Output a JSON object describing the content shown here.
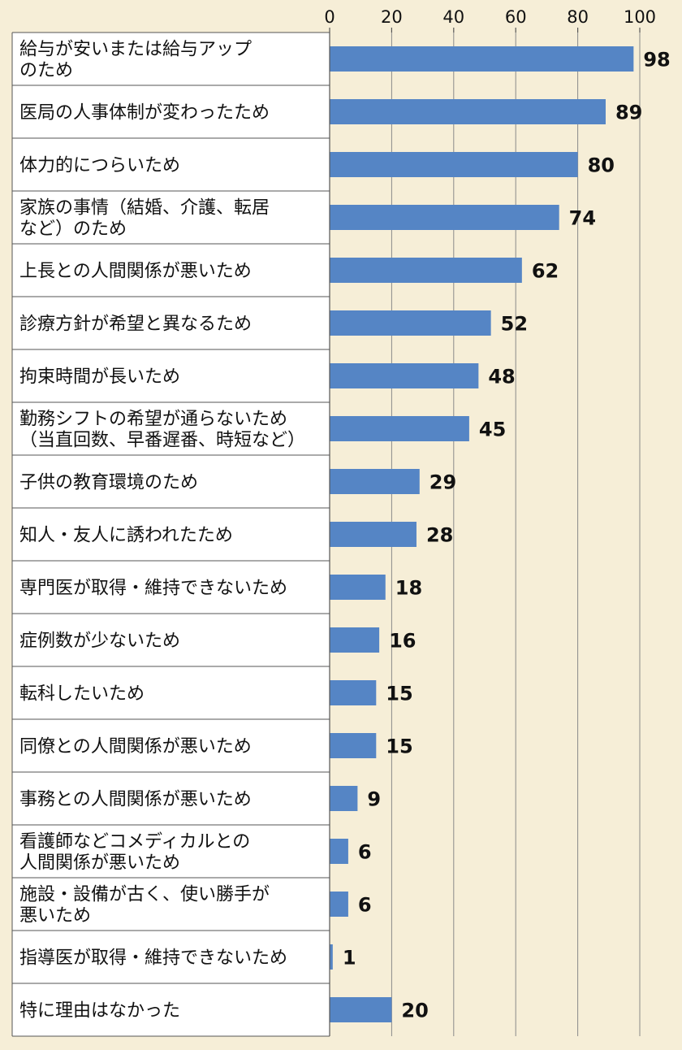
{
  "colors": {
    "background": "#f6eed7",
    "bar": "#5585c5",
    "label_panel": "#ffffff",
    "line": "#555555"
  },
  "chart_data": {
    "type": "bar",
    "orientation": "horizontal",
    "xlim": [
      0,
      100
    ],
    "ticks": [
      0,
      20,
      40,
      60,
      80,
      100
    ],
    "grid": true,
    "categories": [
      [
        "給与が安いまたは給与アップ",
        "のため"
      ],
      [
        "医局の人事体制が変わったため"
      ],
      [
        "体力的につらいため"
      ],
      [
        "家族の事情（結婚、介護、転居",
        "など）のため"
      ],
      [
        "上長との人間関係が悪いため"
      ],
      [
        "診療方針が希望と異なるため"
      ],
      [
        "拘束時間が長いため"
      ],
      [
        "勤務シフトの希望が通らないため",
        "（当直回数、早番遅番、時短など）"
      ],
      [
        "子供の教育環境のため"
      ],
      [
        "知人・友人に誘われたため"
      ],
      [
        "専門医が取得・維持できないため"
      ],
      [
        "症例数が少ないため"
      ],
      [
        "転科したいため"
      ],
      [
        "同僚との人間関係が悪いため"
      ],
      [
        "事務との人間関係が悪いため"
      ],
      [
        "看護師などコメディカルとの",
        "人間関係が悪いため"
      ],
      [
        "施設・設備が古く、使い勝手が",
        "悪いため"
      ],
      [
        "指導医が取得・維持できないため"
      ],
      [
        "特に理由はなかった"
      ]
    ],
    "values": [
      98,
      89,
      80,
      74,
      62,
      52,
      48,
      45,
      29,
      28,
      18,
      16,
      15,
      15,
      9,
      6,
      6,
      1,
      20
    ]
  }
}
